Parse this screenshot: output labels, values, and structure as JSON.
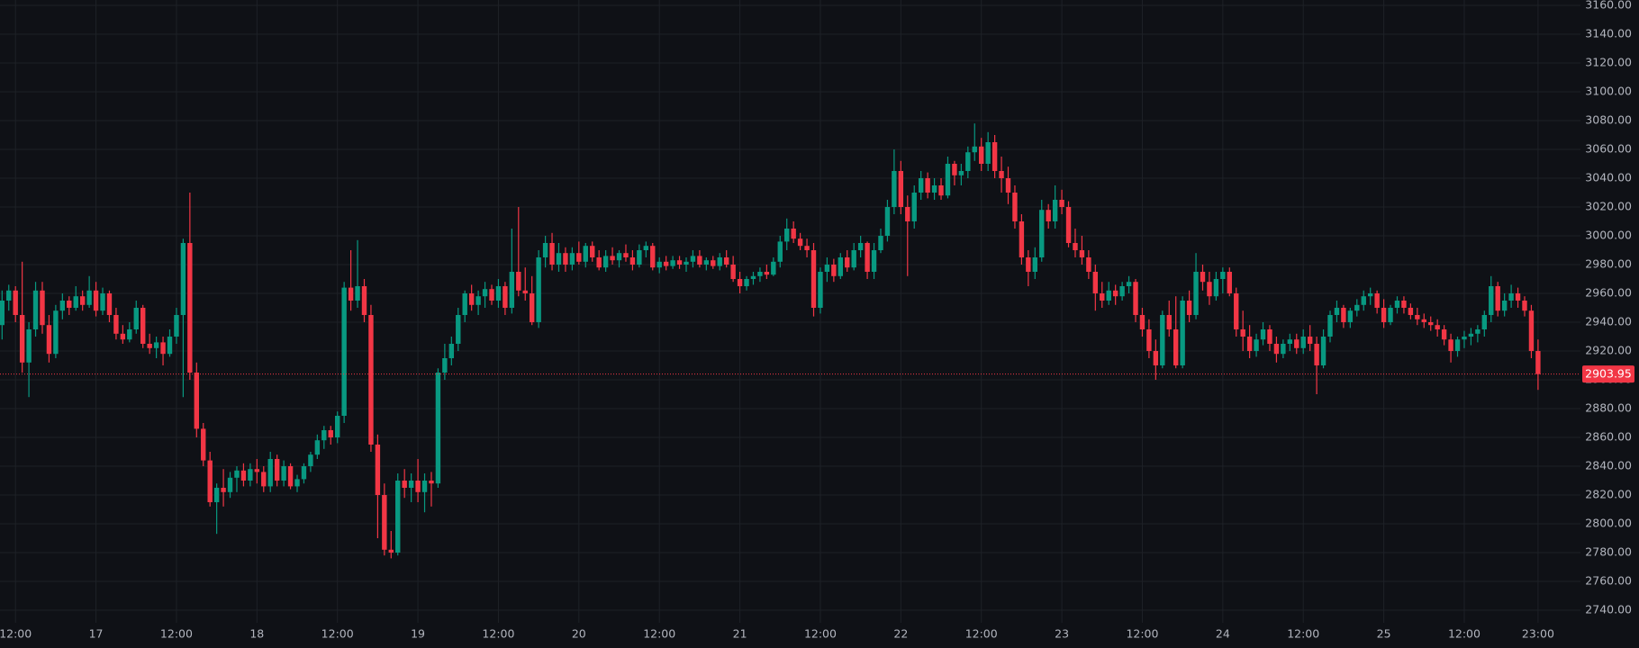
{
  "chart_data": {
    "type": "candlestick",
    "up_color": "#089981",
    "down_color": "#f23645",
    "grid": true,
    "ylim": [
      2731.25,
      3163.75
    ],
    "yticks": [
      {
        "value": 2740,
        "label": "2740.00"
      },
      {
        "value": 2760,
        "label": "2760.00"
      },
      {
        "value": 2780,
        "label": "2780.00"
      },
      {
        "value": 2800,
        "label": "2800.00"
      },
      {
        "value": 2820,
        "label": "2820.00"
      },
      {
        "value": 2840,
        "label": "2840.00"
      },
      {
        "value": 2860,
        "label": "2860.00"
      },
      {
        "value": 2880,
        "label": "2880.00"
      },
      {
        "value": 2900,
        "label": "2900.00"
      },
      {
        "value": 2920,
        "label": "2920.00"
      },
      {
        "value": 2940,
        "label": "2940.00"
      },
      {
        "value": 2960,
        "label": "2960.00"
      },
      {
        "value": 2980,
        "label": "2980.00"
      },
      {
        "value": 3000,
        "label": "3000.00"
      },
      {
        "value": 3020,
        "label": "3020.00"
      },
      {
        "value": 3040,
        "label": "3040.00"
      },
      {
        "value": 3060,
        "label": "3060.00"
      },
      {
        "value": 3080,
        "label": "3080.00"
      },
      {
        "value": 3100,
        "label": "3100.00"
      },
      {
        "value": 3120,
        "label": "3120.00"
      },
      {
        "value": 3140,
        "label": "3140.00"
      },
      {
        "value": 3160,
        "label": "3160.00"
      }
    ],
    "xticks": [
      {
        "value": 2,
        "label": "12:00"
      },
      {
        "value": 14,
        "label": "17"
      },
      {
        "value": 26,
        "label": "12:00"
      },
      {
        "value": 38,
        "label": "18"
      },
      {
        "value": 50,
        "label": "12:00"
      },
      {
        "value": 62,
        "label": "19"
      },
      {
        "value": 74,
        "label": "12:00"
      },
      {
        "value": 86,
        "label": "20"
      },
      {
        "value": 98,
        "label": "12:00"
      },
      {
        "value": 110,
        "label": "21"
      },
      {
        "value": 122,
        "label": "12:00"
      },
      {
        "value": 134,
        "label": "22"
      },
      {
        "value": 146,
        "label": "12:00"
      },
      {
        "value": 158,
        "label": "23"
      },
      {
        "value": 170,
        "label": "12:00"
      },
      {
        "value": 182,
        "label": "24"
      },
      {
        "value": 194,
        "label": "12:00"
      },
      {
        "value": 206,
        "label": "25"
      },
      {
        "value": 218,
        "label": "12:00"
      },
      {
        "value": 229,
        "label": "23:00"
      }
    ],
    "last_price": 2903.95,
    "ohlc": [
      [
        2938,
        2962,
        2928,
        2955
      ],
      [
        2955,
        2966,
        2948,
        2962
      ],
      [
        2962,
        2965,
        2940,
        2945
      ],
      [
        2945,
        2982,
        2905,
        2912
      ],
      [
        2912,
        2940,
        2888,
        2935
      ],
      [
        2935,
        2968,
        2930,
        2962
      ],
      [
        2962,
        2968,
        2932,
        2938
      ],
      [
        2938,
        2945,
        2912,
        2918
      ],
      [
        2918,
        2952,
        2915,
        2948
      ],
      [
        2948,
        2960,
        2942,
        2955
      ],
      [
        2955,
        2958,
        2945,
        2950
      ],
      [
        2950,
        2965,
        2948,
        2958
      ],
      [
        2958,
        2962,
        2948,
        2952
      ],
      [
        2952,
        2972,
        2950,
        2962
      ],
      [
        2962,
        2968,
        2944,
        2948
      ],
      [
        2948,
        2964,
        2945,
        2960
      ],
      [
        2960,
        2962,
        2940,
        2945
      ],
      [
        2945,
        2950,
        2928,
        2932
      ],
      [
        2932,
        2938,
        2925,
        2928
      ],
      [
        2928,
        2940,
        2926,
        2935
      ],
      [
        2935,
        2955,
        2932,
        2950
      ],
      [
        2950,
        2952,
        2922,
        2925
      ],
      [
        2925,
        2932,
        2918,
        2922
      ],
      [
        2922,
        2930,
        2915,
        2926
      ],
      [
        2926,
        2930,
        2910,
        2918
      ],
      [
        2918,
        2935,
        2916,
        2930
      ],
      [
        2930,
        2950,
        2925,
        2945
      ],
      [
        2945,
        2998,
        2888,
        2995
      ],
      [
        2995,
        3030,
        2900,
        2905
      ],
      [
        2905,
        2912,
        2860,
        2866
      ],
      [
        2866,
        2870,
        2840,
        2844
      ],
      [
        2844,
        2850,
        2812,
        2815
      ],
      [
        2815,
        2828,
        2793,
        2825
      ],
      [
        2825,
        2838,
        2812,
        2822
      ],
      [
        2822,
        2836,
        2818,
        2832
      ],
      [
        2832,
        2840,
        2822,
        2837
      ],
      [
        2837,
        2842,
        2826,
        2830
      ],
      [
        2830,
        2842,
        2826,
        2838
      ],
      [
        2838,
        2845,
        2828,
        2836
      ],
      [
        2836,
        2840,
        2822,
        2826
      ],
      [
        2826,
        2850,
        2822,
        2845
      ],
      [
        2845,
        2848,
        2826,
        2830
      ],
      [
        2830,
        2844,
        2826,
        2840
      ],
      [
        2840,
        2842,
        2824,
        2826
      ],
      [
        2826,
        2834,
        2822,
        2831
      ],
      [
        2831,
        2842,
        2828,
        2840
      ],
      [
        2840,
        2850,
        2836,
        2848
      ],
      [
        2848,
        2862,
        2845,
        2858
      ],
      [
        2858,
        2868,
        2852,
        2865
      ],
      [
        2865,
        2868,
        2855,
        2860
      ],
      [
        2860,
        2878,
        2856,
        2875
      ],
      [
        2875,
        2968,
        2870,
        2964
      ],
      [
        2964,
        2990,
        2948,
        2955
      ],
      [
        2955,
        2997,
        2950,
        2965
      ],
      [
        2965,
        2970,
        2940,
        2945
      ],
      [
        2945,
        2952,
        2850,
        2855
      ],
      [
        2855,
        2862,
        2790,
        2820
      ],
      [
        2820,
        2828,
        2778,
        2782
      ],
      [
        2782,
        2795,
        2776,
        2780
      ],
      [
        2780,
        2835,
        2778,
        2830
      ],
      [
        2830,
        2838,
        2818,
        2825
      ],
      [
        2825,
        2835,
        2815,
        2830
      ],
      [
        2830,
        2845,
        2815,
        2822
      ],
      [
        2822,
        2835,
        2808,
        2830
      ],
      [
        2830,
        2836,
        2812,
        2828
      ],
      [
        2828,
        2908,
        2825,
        2905
      ],
      [
        2905,
        2925,
        2900,
        2915
      ],
      [
        2915,
        2930,
        2910,
        2925
      ],
      [
        2925,
        2950,
        2920,
        2945
      ],
      [
        2945,
        2962,
        2940,
        2960
      ],
      [
        2960,
        2966,
        2948,
        2952
      ],
      [
        2952,
        2962,
        2945,
        2958
      ],
      [
        2958,
        2968,
        2950,
        2963
      ],
      [
        2963,
        2966,
        2952,
        2955
      ],
      [
        2955,
        2970,
        2950,
        2965
      ],
      [
        2965,
        2968,
        2945,
        2950
      ],
      [
        2950,
        3005,
        2946,
        2975
      ],
      [
        2975,
        3020,
        2958,
        2962
      ],
      [
        2962,
        2978,
        2955,
        2960
      ],
      [
        2960,
        2972,
        2938,
        2940
      ],
      [
        2940,
        2990,
        2936,
        2985
      ],
      [
        2985,
        3000,
        2978,
        2995
      ],
      [
        2995,
        3002,
        2976,
        2980
      ],
      [
        2980,
        2995,
        2975,
        2988
      ],
      [
        2988,
        2992,
        2975,
        2980
      ],
      [
        2980,
        2992,
        2976,
        2988
      ],
      [
        2988,
        2996,
        2980,
        2982
      ],
      [
        2982,
        2995,
        2978,
        2993
      ],
      [
        2993,
        2996,
        2982,
        2985
      ],
      [
        2985,
        2990,
        2976,
        2978
      ],
      [
        2978,
        2990,
        2975,
        2986
      ],
      [
        2986,
        2992,
        2980,
        2983
      ],
      [
        2983,
        2990,
        2978,
        2988
      ],
      [
        2988,
        2994,
        2982,
        2985
      ],
      [
        2985,
        2990,
        2976,
        2980
      ],
      [
        2980,
        2994,
        2978,
        2990
      ],
      [
        2990,
        2996,
        2985,
        2993
      ],
      [
        2993,
        2995,
        2976,
        2978
      ],
      [
        2978,
        2985,
        2974,
        2982
      ],
      [
        2982,
        2986,
        2976,
        2979
      ],
      [
        2979,
        2986,
        2977,
        2983
      ],
      [
        2983,
        2986,
        2977,
        2980
      ],
      [
        2980,
        2985,
        2975,
        2982
      ],
      [
        2982,
        2990,
        2978,
        2986
      ],
      [
        2986,
        2990,
        2978,
        2980
      ],
      [
        2980,
        2985,
        2976,
        2983
      ],
      [
        2983,
        2986,
        2977,
        2979
      ],
      [
        2979,
        2988,
        2976,
        2985
      ],
      [
        2985,
        2990,
        2978,
        2980
      ],
      [
        2980,
        2986,
        2968,
        2970
      ],
      [
        2970,
        2975,
        2960,
        2965
      ],
      [
        2965,
        2972,
        2962,
        2970
      ],
      [
        2970,
        2975,
        2966,
        2972
      ],
      [
        2972,
        2978,
        2968,
        2975
      ],
      [
        2975,
        2980,
        2970,
        2973
      ],
      [
        2973,
        2985,
        2972,
        2982
      ],
      [
        2982,
        3000,
        2978,
        2996
      ],
      [
        2996,
        3012,
        2990,
        3005
      ],
      [
        3005,
        3010,
        2995,
        2998
      ],
      [
        2998,
        3002,
        2990,
        2993
      ],
      [
        2993,
        2998,
        2985,
        2990
      ],
      [
        2990,
        2995,
        2944,
        2950
      ],
      [
        2950,
        2978,
        2946,
        2975
      ],
      [
        2975,
        2985,
        2968,
        2980
      ],
      [
        2980,
        2984,
        2968,
        2972
      ],
      [
        2972,
        2988,
        2970,
        2985
      ],
      [
        2985,
        2990,
        2975,
        2978
      ],
      [
        2978,
        2995,
        2976,
        2990
      ],
      [
        2990,
        3000,
        2985,
        2995
      ],
      [
        2995,
        2996,
        2970,
        2975
      ],
      [
        2975,
        2995,
        2970,
        2990
      ],
      [
        2990,
        3005,
        2988,
        3000
      ],
      [
        3000,
        3025,
        2996,
        3020
      ],
      [
        3020,
        3060,
        3015,
        3045
      ],
      [
        3045,
        3052,
        3015,
        3020
      ],
      [
        3020,
        3028,
        2972,
        3010
      ],
      [
        3010,
        3035,
        3005,
        3030
      ],
      [
        3030,
        3045,
        3025,
        3040
      ],
      [
        3040,
        3044,
        3026,
        3030
      ],
      [
        3030,
        3040,
        3025,
        3035
      ],
      [
        3035,
        3040,
        3025,
        3028
      ],
      [
        3028,
        3055,
        3026,
        3050
      ],
      [
        3050,
        3052,
        3035,
        3042
      ],
      [
        3042,
        3050,
        3035,
        3045
      ],
      [
        3045,
        3062,
        3040,
        3058
      ],
      [
        3058,
        3078,
        3052,
        3062
      ],
      [
        3062,
        3068,
        3045,
        3050
      ],
      [
        3050,
        3072,
        3045,
        3065
      ],
      [
        3065,
        3070,
        3040,
        3045
      ],
      [
        3045,
        3055,
        3030,
        3040
      ],
      [
        3040,
        3048,
        3022,
        3030
      ],
      [
        3030,
        3035,
        3005,
        3010
      ],
      [
        3010,
        3015,
        2980,
        2985
      ],
      [
        2985,
        2990,
        2965,
        2975
      ],
      [
        2975,
        2992,
        2970,
        2985
      ],
      [
        2985,
        3025,
        2982,
        3018
      ],
      [
        3018,
        3022,
        3005,
        3010
      ],
      [
        3010,
        3035,
        3005,
        3025
      ],
      [
        3025,
        3032,
        3015,
        3020
      ],
      [
        3020,
        3024,
        2992,
        2995
      ],
      [
        2995,
        3005,
        2985,
        2990
      ],
      [
        2990,
        3000,
        2980,
        2985
      ],
      [
        2985,
        2990,
        2970,
        2975
      ],
      [
        2975,
        2980,
        2948,
        2960
      ],
      [
        2960,
        2968,
        2950,
        2955
      ],
      [
        2955,
        2968,
        2952,
        2962
      ],
      [
        2962,
        2966,
        2952,
        2958
      ],
      [
        2958,
        2968,
        2955,
        2965
      ],
      [
        2965,
        2972,
        2960,
        2968
      ],
      [
        2968,
        2970,
        2940,
        2945
      ],
      [
        2945,
        2950,
        2930,
        2935
      ],
      [
        2935,
        2942,
        2915,
        2920
      ],
      [
        2920,
        2928,
        2900,
        2910
      ],
      [
        2910,
        2948,
        2908,
        2945
      ],
      [
        2945,
        2955,
        2930,
        2935
      ],
      [
        2935,
        2958,
        2908,
        2910
      ],
      [
        2910,
        2958,
        2908,
        2955
      ],
      [
        2955,
        2962,
        2940,
        2945
      ],
      [
        2945,
        2988,
        2942,
        2975
      ],
      [
        2975,
        2980,
        2962,
        2968
      ],
      [
        2968,
        2975,
        2952,
        2958
      ],
      [
        2958,
        2975,
        2955,
        2970
      ],
      [
        2970,
        2978,
        2960,
        2975
      ],
      [
        2975,
        2978,
        2958,
        2960
      ],
      [
        2960,
        2964,
        2930,
        2935
      ],
      [
        2935,
        2948,
        2920,
        2930
      ],
      [
        2930,
        2938,
        2915,
        2920
      ],
      [
        2920,
        2932,
        2916,
        2928
      ],
      [
        2928,
        2940,
        2924,
        2935
      ],
      [
        2935,
        2938,
        2920,
        2925
      ],
      [
        2925,
        2930,
        2912,
        2918
      ],
      [
        2918,
        2928,
        2915,
        2925
      ],
      [
        2925,
        2932,
        2920,
        2928
      ],
      [
        2928,
        2932,
        2918,
        2922
      ],
      [
        2922,
        2935,
        2918,
        2930
      ],
      [
        2930,
        2938,
        2920,
        2925
      ],
      [
        2925,
        2930,
        2890,
        2910
      ],
      [
        2910,
        2935,
        2908,
        2930
      ],
      [
        2930,
        2948,
        2926,
        2945
      ],
      [
        2945,
        2955,
        2940,
        2950
      ],
      [
        2950,
        2952,
        2936,
        2940
      ],
      [
        2940,
        2950,
        2936,
        2948
      ],
      [
        2948,
        2956,
        2944,
        2952
      ],
      [
        2952,
        2962,
        2948,
        2958
      ],
      [
        2958,
        2964,
        2952,
        2960
      ],
      [
        2960,
        2962,
        2946,
        2950
      ],
      [
        2950,
        2956,
        2936,
        2940
      ],
      [
        2940,
        2952,
        2938,
        2950
      ],
      [
        2950,
        2958,
        2946,
        2955
      ],
      [
        2955,
        2958,
        2946,
        2950
      ],
      [
        2950,
        2953,
        2942,
        2945
      ],
      [
        2945,
        2950,
        2938,
        2942
      ],
      [
        2942,
        2946,
        2936,
        2940
      ],
      [
        2940,
        2944,
        2934,
        2938
      ],
      [
        2938,
        2942,
        2930,
        2935
      ],
      [
        2935,
        2938,
        2924,
        2928
      ],
      [
        2928,
        2932,
        2912,
        2920
      ],
      [
        2920,
        2930,
        2916,
        2928
      ],
      [
        2928,
        2934,
        2922,
        2930
      ],
      [
        2930,
        2936,
        2924,
        2932
      ],
      [
        2932,
        2938,
        2926,
        2935
      ],
      [
        2935,
        2948,
        2930,
        2945
      ],
      [
        2945,
        2972,
        2940,
        2965
      ],
      [
        2965,
        2968,
        2944,
        2948
      ],
      [
        2948,
        2960,
        2944,
        2955
      ],
      [
        2955,
        2966,
        2950,
        2960
      ],
      [
        2960,
        2964,
        2950,
        2955
      ],
      [
        2955,
        2958,
        2944,
        2948
      ],
      [
        2948,
        2952,
        2915,
        2920
      ],
      [
        2920,
        2928,
        2893,
        2903.95
      ]
    ]
  }
}
